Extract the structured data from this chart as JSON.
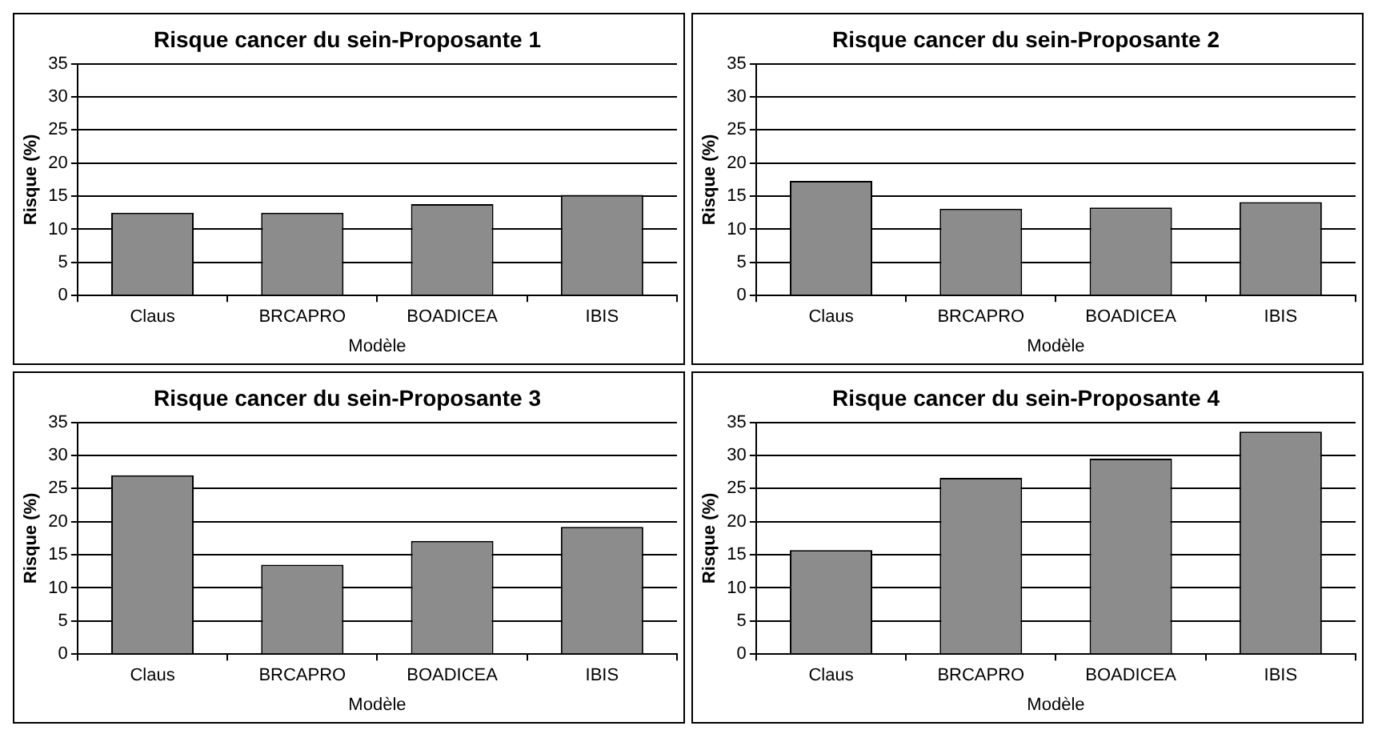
{
  "chart_data": [
    {
      "type": "bar",
      "title": "Risque cancer du sein-Proposante 1",
      "xlabel": "Modèle",
      "ylabel": "Risque (%)",
      "categories": [
        "Claus",
        "BRCAPRO",
        "BOADICEA",
        "IBIS"
      ],
      "values": [
        12.5,
        12.5,
        13.8,
        15.2
      ],
      "color": "#8c8c8c",
      "ylim": [
        0,
        35
      ],
      "yticks": [
        0,
        5,
        10,
        15,
        20,
        25,
        30,
        35
      ],
      "grid": "y"
    },
    {
      "type": "bar",
      "title": "Risque cancer du sein-Proposante 2",
      "xlabel": "Modèle",
      "ylabel": "Risque (%)",
      "categories": [
        "Claus",
        "BRCAPRO",
        "BOADICEA",
        "IBIS"
      ],
      "values": [
        17.3,
        13.1,
        13.3,
        14.1
      ],
      "color": "#8c8c8c",
      "ylim": [
        0,
        35
      ],
      "yticks": [
        0,
        5,
        10,
        15,
        20,
        25,
        30,
        35
      ],
      "grid": "y"
    },
    {
      "type": "bar",
      "title": "Risque cancer du sein-Proposante 3",
      "xlabel": "Modèle",
      "ylabel": "Risque (%)",
      "categories": [
        "Claus",
        "BRCAPRO",
        "BOADICEA",
        "IBIS"
      ],
      "values": [
        27.0,
        13.5,
        17.1,
        19.2
      ],
      "color": "#8c8c8c",
      "ylim": [
        0,
        35
      ],
      "yticks": [
        0,
        5,
        10,
        15,
        20,
        25,
        30,
        35
      ],
      "grid": "y"
    },
    {
      "type": "bar",
      "title": "Risque cancer du sein-Proposante 4",
      "xlabel": "Modèle",
      "ylabel": "Risque (%)",
      "categories": [
        "Claus",
        "BRCAPRO",
        "BOADICEA",
        "IBIS"
      ],
      "values": [
        15.7,
        26.6,
        29.5,
        33.6
      ],
      "color": "#8c8c8c",
      "ylim": [
        0,
        35
      ],
      "yticks": [
        0,
        5,
        10,
        15,
        20,
        25,
        30,
        35
      ],
      "grid": "y"
    }
  ]
}
